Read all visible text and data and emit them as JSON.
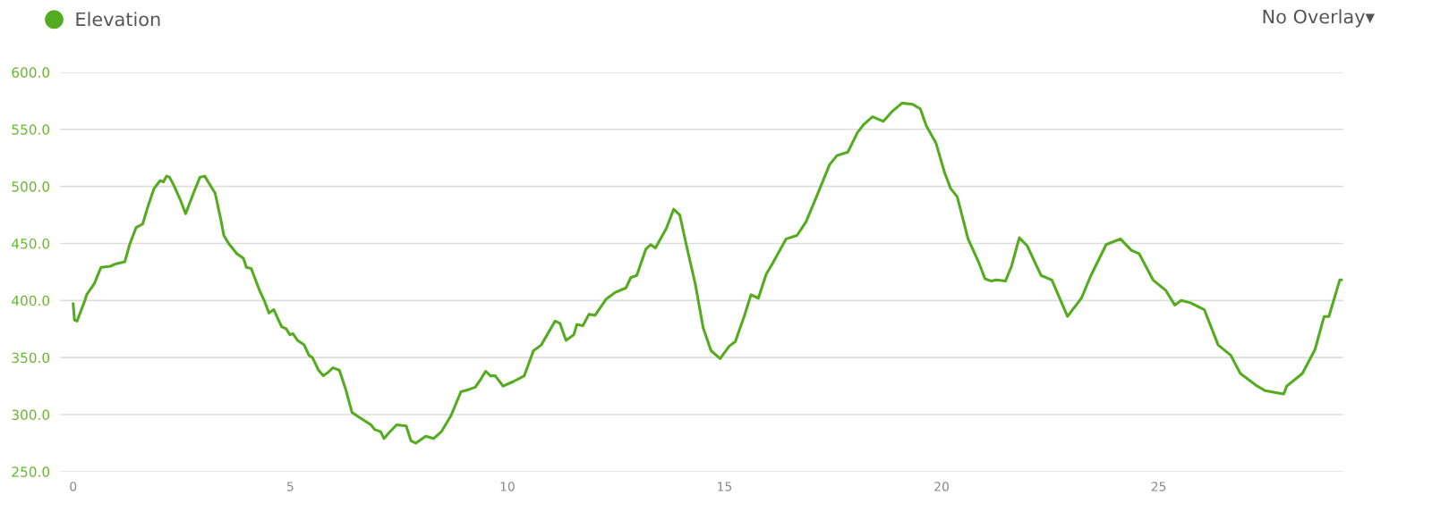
{
  "chart_data": {
    "type": "line",
    "legend": "top left",
    "grid": "y",
    "marker": "none",
    "line_style": "solid",
    "annotations": [
      "No Overlay▾"
    ],
    "xlim": [
      -0.3,
      29.25
    ],
    "xticks": [
      0,
      5,
      10,
      15,
      20,
      25
    ],
    "ylim": [
      250,
      600
    ],
    "yticks": [
      {
        "value": 250,
        "label": "250.0"
      },
      {
        "value": 300,
        "label": "300.0"
      },
      {
        "value": 350,
        "label": "350.0"
      },
      {
        "value": 400,
        "label": "400.0"
      },
      {
        "value": 450,
        "label": "450.0"
      },
      {
        "value": 500,
        "label": "500.0"
      },
      {
        "value": 550,
        "label": "550.0"
      },
      {
        "value": 600,
        "label": "600.0"
      }
    ],
    "series": [
      {
        "name": "Elevation",
        "color": "#55ab1f",
        "x": [
          0,
          0.03,
          0.09,
          0.27,
          0.31,
          0.49,
          0.64,
          0.86,
          0.97,
          1.19,
          1.3,
          1.45,
          1.6,
          1.71,
          1.86,
          2.0,
          2.08,
          2.15,
          2.22,
          2.33,
          2.48,
          2.59,
          2.78,
          2.92,
          3.03,
          3.14,
          3.27,
          3.4,
          3.47,
          3.58,
          3.77,
          3.92,
          3.99,
          4.1,
          4.29,
          4.4,
          4.51,
          4.62,
          4.8,
          4.91,
          4.99,
          5.06,
          5.17,
          5.32,
          5.43,
          5.51,
          5.65,
          5.76,
          5.87,
          5.98,
          6.13,
          6.27,
          6.42,
          6.57,
          6.86,
          6.94,
          7.08,
          7.16,
          7.27,
          7.45,
          7.67,
          7.78,
          7.89,
          8.12,
          8.3,
          8.48,
          8.7,
          8.93,
          9.11,
          9.26,
          9.37,
          9.5,
          9.61,
          9.72,
          9.9,
          10.14,
          10.39,
          10.6,
          10.78,
          11.1,
          11.21,
          11.35,
          11.53,
          11.6,
          11.74,
          11.88,
          12.02,
          12.27,
          12.48,
          12.73,
          12.84,
          12.98,
          13.19,
          13.3,
          13.41,
          13.66,
          13.83,
          13.97,
          14.12,
          14.33,
          14.51,
          14.69,
          14.9,
          15.11,
          15.25,
          15.47,
          15.61,
          15.78,
          15.96,
          16.1,
          16.42,
          16.67,
          16.88,
          17.13,
          17.42,
          17.59,
          17.84,
          18.06,
          18.2,
          18.41,
          18.66,
          18.87,
          19.09,
          19.33,
          19.51,
          19.65,
          19.87,
          20.07,
          20.21,
          20.36,
          20.61,
          20.86,
          21.0,
          21.15,
          21.25,
          21.47,
          21.61,
          21.79,
          21.97,
          22.29,
          22.54,
          22.9,
          23.22,
          23.44,
          23.79,
          24.12,
          24.37,
          24.55,
          24.87,
          25.16,
          25.37,
          25.52,
          25.73,
          26.05,
          26.37,
          26.66,
          26.88,
          27.23,
          27.45,
          27.88,
          27.95,
          28.31,
          28.6,
          28.81,
          28.92,
          29.17,
          29.21
        ],
        "values": [
          397,
          383,
          382,
          400,
          405,
          415,
          429,
          430,
          432,
          434,
          449,
          464,
          467,
          481,
          498,
          505,
          504,
          509,
          508,
          500,
          487,
          476,
          495,
          508,
          509,
          502,
          494,
          471,
          457,
          450,
          441,
          437,
          429,
          428,
          409,
          400,
          389,
          392,
          377,
          375,
          370,
          371,
          365,
          361,
          352,
          350,
          339,
          334,
          337,
          341,
          339,
          323,
          302,
          298,
          291,
          287,
          285,
          279,
          284,
          291,
          290,
          277,
          275,
          281,
          279,
          285,
          299,
          320,
          322,
          324,
          330,
          338,
          334,
          334,
          325,
          329,
          334,
          356,
          361,
          382,
          380,
          365,
          370,
          379,
          378,
          388,
          387,
          401,
          407,
          411,
          420,
          422,
          445,
          449,
          446,
          463,
          480,
          475,
          449,
          414,
          376,
          356,
          349,
          360,
          364,
          388,
          405,
          402,
          423,
          432,
          454,
          457,
          469,
          492,
          519,
          527,
          530,
          547,
          554,
          561,
          557,
          566,
          573,
          572,
          568,
          553,
          538,
          512,
          498,
          491,
          454,
          433,
          419,
          417,
          418,
          417,
          430,
          455,
          448,
          422,
          418,
          386,
          402,
          422,
          449,
          454,
          444,
          441,
          418,
          409,
          396,
          400,
          398,
          392,
          361,
          352,
          336,
          326,
          321,
          318,
          325,
          336,
          357,
          386,
          386,
          418,
          418
        ]
      }
    ]
  }
}
